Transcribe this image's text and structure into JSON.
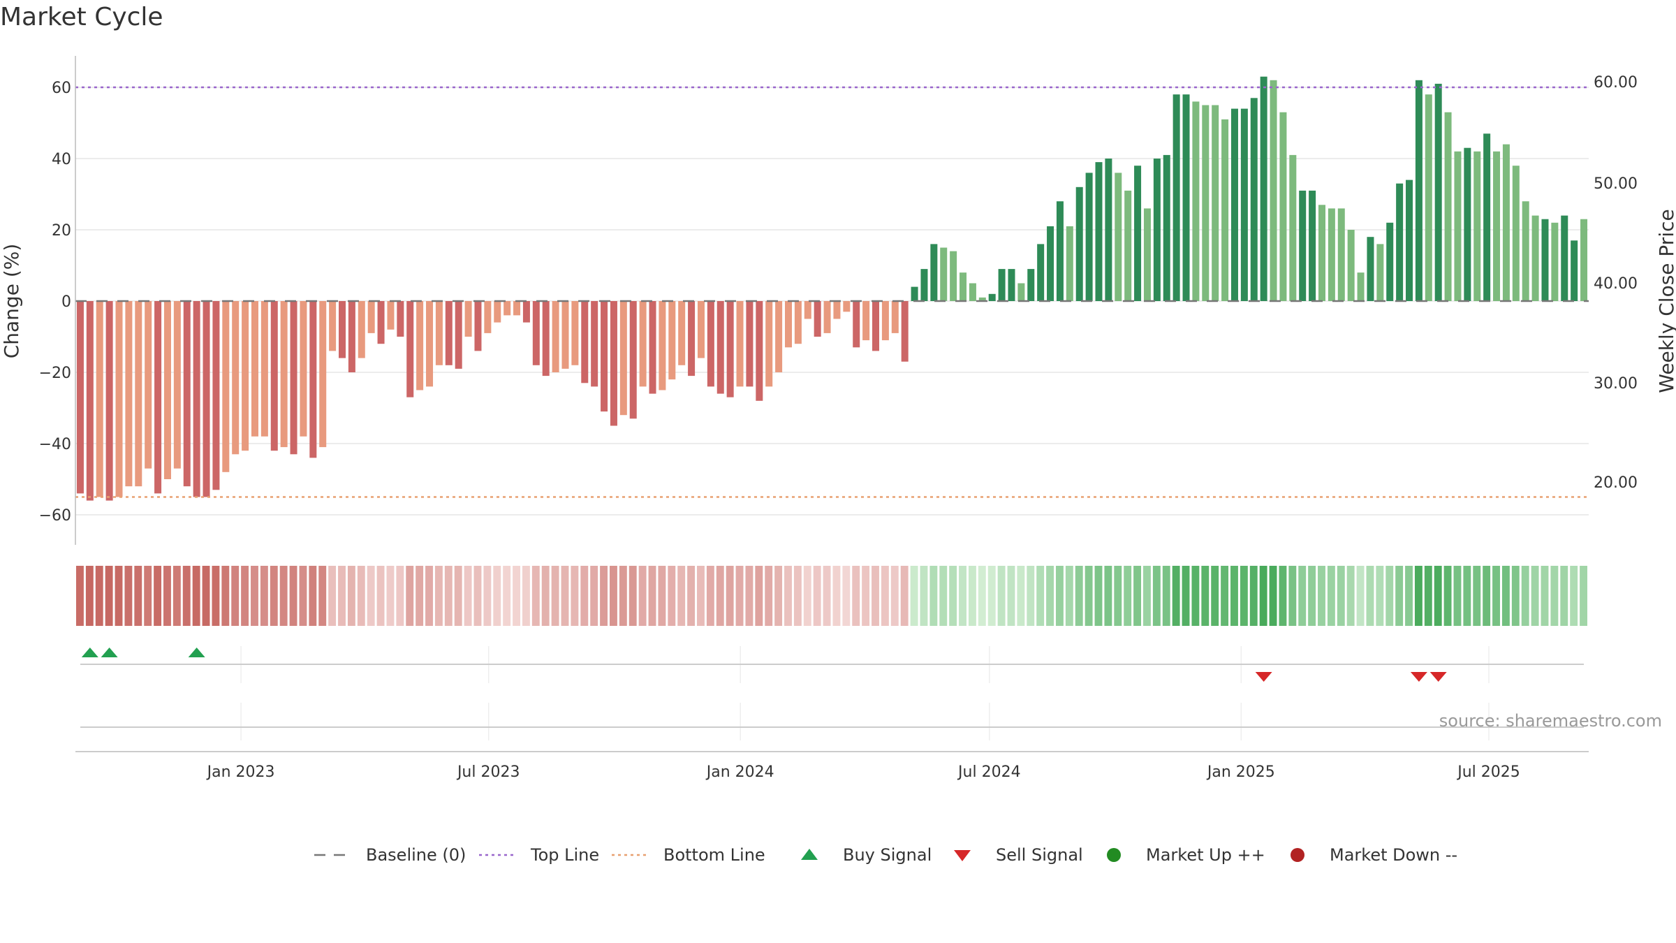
{
  "title": "Market Cycle",
  "source": "source: sharemaestro.com",
  "chart_data": {
    "type": "bar",
    "title": "Market Cycle",
    "ylabel_left": "Change (%)",
    "ylabel_right": "Weekly Close Price",
    "ylim_left": [
      -70,
      70
    ],
    "yticks_left": [
      60,
      40,
      20,
      0,
      -20,
      -40,
      -60
    ],
    "ytick_labels_left": [
      "60",
      "40",
      "20",
      "0",
      "−20",
      "−40",
      "−60"
    ],
    "ytick_labels_right": [
      "60.00",
      "50.00",
      "40.00",
      "30.00",
      "20.00"
    ],
    "top_line": 60,
    "bottom_line": -55,
    "x_start": "2022-09-02",
    "x_end": "2025-09-12",
    "date_ticks": [
      {
        "date": "2023-01-01",
        "label": "Jan 2023"
      },
      {
        "date": "2023-07-01",
        "label": "Jul 2023"
      },
      {
        "date": "2024-01-01",
        "label": "Jan 2024"
      },
      {
        "date": "2024-07-01",
        "label": "Jul 2024"
      },
      {
        "date": "2025-01-01",
        "label": "Jan 2025"
      },
      {
        "date": "2025-07-01",
        "label": "Jul 2025"
      }
    ],
    "values": [
      -54,
      -56,
      -55,
      -56,
      -55,
      -52,
      -52,
      -47,
      -54,
      -50,
      -47,
      -52,
      -55,
      -55,
      -53,
      -48,
      -43,
      -42,
      -38,
      -38,
      -42,
      -41,
      -43,
      -38,
      -44,
      -41,
      -14,
      -16,
      -20,
      -16,
      -9,
      -12,
      -8,
      -10,
      -27,
      -25,
      -24,
      -18,
      -18,
      -19,
      -10,
      -14,
      -9,
      -6,
      -4,
      -4,
      -6,
      -18,
      -21,
      -20,
      -19,
      -18,
      -23,
      -24,
      -31,
      -35,
      -32,
      -33,
      -24,
      -26,
      -25,
      -22,
      -18,
      -21,
      -16,
      -24,
      -26,
      -27,
      -24,
      -24,
      -28,
      -24,
      -20,
      -13,
      -12,
      -5,
      -10,
      -9,
      -5,
      -3,
      -13,
      -11,
      -14,
      -11,
      -9,
      -17,
      4,
      9,
      16,
      15,
      14,
      8,
      5,
      1,
      2,
      9,
      9,
      5,
      9,
      16,
      21,
      28,
      21,
      32,
      36,
      39,
      40,
      36,
      31,
      38,
      26,
      40,
      41,
      58,
      58,
      56,
      55,
      55,
      51,
      54,
      54,
      57,
      63,
      62,
      53,
      41,
      31,
      31,
      27,
      26,
      26,
      20,
      8,
      18,
      16,
      22,
      33,
      34,
      62,
      58,
      61,
      53,
      42,
      43,
      42,
      47,
      42,
      44,
      38,
      28,
      24,
      23,
      22,
      24,
      17,
      23
    ],
    "bar_colors": [
      "#cc6666",
      "#cc6666",
      "#e89a7e",
      "#cc6666",
      "#e89a7e",
      "#e89a7e",
      "#e89a7e",
      "#e89a7e",
      "#cc6666",
      "#e89a7e",
      "#e89a7e",
      "#cc6666",
      "#cc6666",
      "#cc6666",
      "#cc6666",
      "#e89a7e",
      "#e89a7e",
      "#e89a7e",
      "#e89a7e",
      "#e89a7e",
      "#cc6666",
      "#e89a7e",
      "#cc6666",
      "#e89a7e",
      "#cc6666",
      "#e89a7e",
      "#e89a7e",
      "#cc6666",
      "#cc6666",
      "#e89a7e",
      "#e89a7e",
      "#cc6666",
      "#e89a7e",
      "#cc6666",
      "#cc6666",
      "#e89a7e",
      "#e89a7e",
      "#e89a7e",
      "#cc6666",
      "#cc6666",
      "#e89a7e",
      "#cc6666",
      "#e89a7e",
      "#e89a7e",
      "#e89a7e",
      "#e89a7e",
      "#cc6666",
      "#cc6666",
      "#cc6666",
      "#e89a7e",
      "#e89a7e",
      "#e89a7e",
      "#cc6666",
      "#cc6666",
      "#cc6666",
      "#cc6666",
      "#e89a7e",
      "#cc6666",
      "#e89a7e",
      "#cc6666",
      "#e89a7e",
      "#e89a7e",
      "#e89a7e",
      "#cc6666",
      "#e89a7e",
      "#cc6666",
      "#cc6666",
      "#cc6666",
      "#e89a7e",
      "#cc6666",
      "#cc6666",
      "#e89a7e",
      "#e89a7e",
      "#e89a7e",
      "#e89a7e",
      "#e89a7e",
      "#cc6666",
      "#e89a7e",
      "#e89a7e",
      "#e89a7e",
      "#cc6666",
      "#e89a7e",
      "#cc6666",
      "#e89a7e",
      "#e89a7e",
      "#cc6666",
      "#2e8b57",
      "#2e8b57",
      "#2e8b57",
      "#7dba7d",
      "#7dba7d",
      "#7dba7d",
      "#7dba7d",
      "#7dba7d",
      "#2e8b57",
      "#2e8b57",
      "#2e8b57",
      "#7dba7d",
      "#2e8b57",
      "#2e8b57",
      "#2e8b57",
      "#2e8b57",
      "#7dba7d",
      "#2e8b57",
      "#2e8b57",
      "#2e8b57",
      "#2e8b57",
      "#7dba7d",
      "#7dba7d",
      "#2e8b57",
      "#7dba7d",
      "#2e8b57",
      "#2e8b57",
      "#2e8b57",
      "#2e8b57",
      "#7dba7d",
      "#7dba7d",
      "#7dba7d",
      "#7dba7d",
      "#2e8b57",
      "#2e8b57",
      "#2e8b57",
      "#2e8b57",
      "#7dba7d",
      "#7dba7d",
      "#7dba7d",
      "#2e8b57",
      "#2e8b57",
      "#7dba7d",
      "#7dba7d",
      "#7dba7d",
      "#7dba7d",
      "#7dba7d",
      "#2e8b57",
      "#7dba7d",
      "#2e8b57",
      "#2e8b57",
      "#2e8b57",
      "#2e8b57",
      "#7dba7d",
      "#2e8b57",
      "#7dba7d",
      "#7dba7d",
      "#2e8b57",
      "#7dba7d",
      "#2e8b57",
      "#7dba7d",
      "#7dba7d",
      "#7dba7d",
      "#7dba7d",
      "#7dba7d",
      "#2e8b57",
      "#7dba7d",
      "#2e8b57",
      "#2e8b57",
      "#7dba7d"
    ],
    "buy_signals": [
      1,
      3,
      12
    ],
    "sell_signals": [
      122,
      138,
      140
    ],
    "legend": [
      {
        "label": "Baseline (0)",
        "marker": "dashed-line",
        "color": "#777777"
      },
      {
        "label": "Top Line",
        "marker": "dotted-line",
        "color": "#9966cc"
      },
      {
        "label": "Bottom Line",
        "marker": "dotted-line",
        "color": "#e8a070"
      },
      {
        "label": "Buy Signal",
        "marker": "triangle-up",
        "color": "#22a050"
      },
      {
        "label": "Sell Signal",
        "marker": "triangle-down",
        "color": "#d62728"
      },
      {
        "label": "Market Up ++",
        "marker": "circle",
        "color": "#228b22"
      },
      {
        "label": "Market Down --",
        "marker": "circle",
        "color": "#b22222"
      }
    ],
    "legend_position": "bottom-center",
    "grid": true
  }
}
